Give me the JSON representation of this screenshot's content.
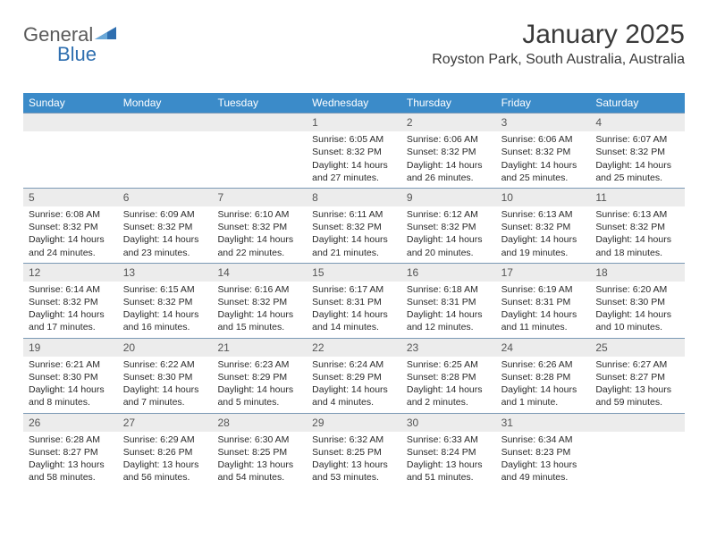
{
  "logo": {
    "text1": "General",
    "text2": "Blue"
  },
  "header": {
    "month_title": "January 2025",
    "location": "Royston Park, South Australia, Australia"
  },
  "colors": {
    "header_bg": "#3b8bc9",
    "header_text": "#ffffff",
    "day_number_bg": "#ececec",
    "row_border": "#7a99b5",
    "logo_gray": "#5a5a5a",
    "logo_blue": "#2f6fb0"
  },
  "weekdays": [
    "Sunday",
    "Monday",
    "Tuesday",
    "Wednesday",
    "Thursday",
    "Friday",
    "Saturday"
  ],
  "weeks": [
    [
      {
        "day": "",
        "lines": []
      },
      {
        "day": "",
        "lines": []
      },
      {
        "day": "",
        "lines": []
      },
      {
        "day": "1",
        "lines": [
          "Sunrise: 6:05 AM",
          "Sunset: 8:32 PM",
          "Daylight: 14 hours",
          "and 27 minutes."
        ]
      },
      {
        "day": "2",
        "lines": [
          "Sunrise: 6:06 AM",
          "Sunset: 8:32 PM",
          "Daylight: 14 hours",
          "and 26 minutes."
        ]
      },
      {
        "day": "3",
        "lines": [
          "Sunrise: 6:06 AM",
          "Sunset: 8:32 PM",
          "Daylight: 14 hours",
          "and 25 minutes."
        ]
      },
      {
        "day": "4",
        "lines": [
          "Sunrise: 6:07 AM",
          "Sunset: 8:32 PM",
          "Daylight: 14 hours",
          "and 25 minutes."
        ]
      }
    ],
    [
      {
        "day": "5",
        "lines": [
          "Sunrise: 6:08 AM",
          "Sunset: 8:32 PM",
          "Daylight: 14 hours",
          "and 24 minutes."
        ]
      },
      {
        "day": "6",
        "lines": [
          "Sunrise: 6:09 AM",
          "Sunset: 8:32 PM",
          "Daylight: 14 hours",
          "and 23 minutes."
        ]
      },
      {
        "day": "7",
        "lines": [
          "Sunrise: 6:10 AM",
          "Sunset: 8:32 PM",
          "Daylight: 14 hours",
          "and 22 minutes."
        ]
      },
      {
        "day": "8",
        "lines": [
          "Sunrise: 6:11 AM",
          "Sunset: 8:32 PM",
          "Daylight: 14 hours",
          "and 21 minutes."
        ]
      },
      {
        "day": "9",
        "lines": [
          "Sunrise: 6:12 AM",
          "Sunset: 8:32 PM",
          "Daylight: 14 hours",
          "and 20 minutes."
        ]
      },
      {
        "day": "10",
        "lines": [
          "Sunrise: 6:13 AM",
          "Sunset: 8:32 PM",
          "Daylight: 14 hours",
          "and 19 minutes."
        ]
      },
      {
        "day": "11",
        "lines": [
          "Sunrise: 6:13 AM",
          "Sunset: 8:32 PM",
          "Daylight: 14 hours",
          "and 18 minutes."
        ]
      }
    ],
    [
      {
        "day": "12",
        "lines": [
          "Sunrise: 6:14 AM",
          "Sunset: 8:32 PM",
          "Daylight: 14 hours",
          "and 17 minutes."
        ]
      },
      {
        "day": "13",
        "lines": [
          "Sunrise: 6:15 AM",
          "Sunset: 8:32 PM",
          "Daylight: 14 hours",
          "and 16 minutes."
        ]
      },
      {
        "day": "14",
        "lines": [
          "Sunrise: 6:16 AM",
          "Sunset: 8:32 PM",
          "Daylight: 14 hours",
          "and 15 minutes."
        ]
      },
      {
        "day": "15",
        "lines": [
          "Sunrise: 6:17 AM",
          "Sunset: 8:31 PM",
          "Daylight: 14 hours",
          "and 14 minutes."
        ]
      },
      {
        "day": "16",
        "lines": [
          "Sunrise: 6:18 AM",
          "Sunset: 8:31 PM",
          "Daylight: 14 hours",
          "and 12 minutes."
        ]
      },
      {
        "day": "17",
        "lines": [
          "Sunrise: 6:19 AM",
          "Sunset: 8:31 PM",
          "Daylight: 14 hours",
          "and 11 minutes."
        ]
      },
      {
        "day": "18",
        "lines": [
          "Sunrise: 6:20 AM",
          "Sunset: 8:30 PM",
          "Daylight: 14 hours",
          "and 10 minutes."
        ]
      }
    ],
    [
      {
        "day": "19",
        "lines": [
          "Sunrise: 6:21 AM",
          "Sunset: 8:30 PM",
          "Daylight: 14 hours",
          "and 8 minutes."
        ]
      },
      {
        "day": "20",
        "lines": [
          "Sunrise: 6:22 AM",
          "Sunset: 8:30 PM",
          "Daylight: 14 hours",
          "and 7 minutes."
        ]
      },
      {
        "day": "21",
        "lines": [
          "Sunrise: 6:23 AM",
          "Sunset: 8:29 PM",
          "Daylight: 14 hours",
          "and 5 minutes."
        ]
      },
      {
        "day": "22",
        "lines": [
          "Sunrise: 6:24 AM",
          "Sunset: 8:29 PM",
          "Daylight: 14 hours",
          "and 4 minutes."
        ]
      },
      {
        "day": "23",
        "lines": [
          "Sunrise: 6:25 AM",
          "Sunset: 8:28 PM",
          "Daylight: 14 hours",
          "and 2 minutes."
        ]
      },
      {
        "day": "24",
        "lines": [
          "Sunrise: 6:26 AM",
          "Sunset: 8:28 PM",
          "Daylight: 14 hours",
          "and 1 minute."
        ]
      },
      {
        "day": "25",
        "lines": [
          "Sunrise: 6:27 AM",
          "Sunset: 8:27 PM",
          "Daylight: 13 hours",
          "and 59 minutes."
        ]
      }
    ],
    [
      {
        "day": "26",
        "lines": [
          "Sunrise: 6:28 AM",
          "Sunset: 8:27 PM",
          "Daylight: 13 hours",
          "and 58 minutes."
        ]
      },
      {
        "day": "27",
        "lines": [
          "Sunrise: 6:29 AM",
          "Sunset: 8:26 PM",
          "Daylight: 13 hours",
          "and 56 minutes."
        ]
      },
      {
        "day": "28",
        "lines": [
          "Sunrise: 6:30 AM",
          "Sunset: 8:25 PM",
          "Daylight: 13 hours",
          "and 54 minutes."
        ]
      },
      {
        "day": "29",
        "lines": [
          "Sunrise: 6:32 AM",
          "Sunset: 8:25 PM",
          "Daylight: 13 hours",
          "and 53 minutes."
        ]
      },
      {
        "day": "30",
        "lines": [
          "Sunrise: 6:33 AM",
          "Sunset: 8:24 PM",
          "Daylight: 13 hours",
          "and 51 minutes."
        ]
      },
      {
        "day": "31",
        "lines": [
          "Sunrise: 6:34 AM",
          "Sunset: 8:23 PM",
          "Daylight: 13 hours",
          "and 49 minutes."
        ]
      },
      {
        "day": "",
        "lines": []
      }
    ]
  ]
}
